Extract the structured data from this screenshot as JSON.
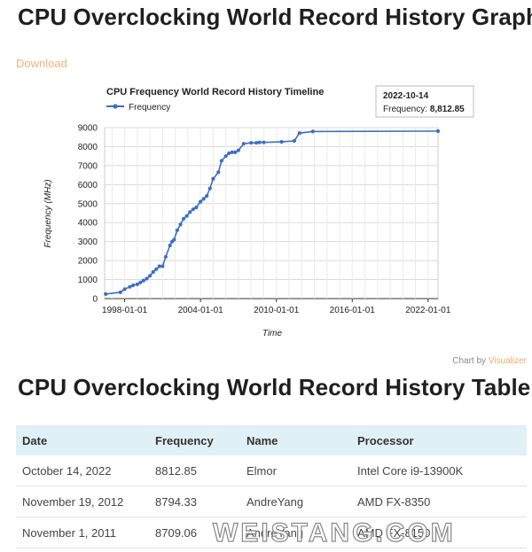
{
  "page": {
    "title": "CPU Overclocking World Record History Graph",
    "download_label": "Download",
    "credit_prefix": "Chart by ",
    "credit_link": "Visualizer",
    "table_title": "CPU Overclocking World Record History Table",
    "watermark": "WEISTANG.COM"
  },
  "chart_data": {
    "type": "line",
    "title": "CPU Frequency World Record History Timeline",
    "xlabel": "Time",
    "ylabel": "Frequency (MHz)",
    "legend": "top-left",
    "grid": true,
    "ylim": [
      0,
      9000
    ],
    "xlim": [
      "1996-06-01",
      "2022-10-14"
    ],
    "yticks": [
      "0",
      "1000",
      "2000",
      "3000",
      "4000",
      "5000",
      "6000",
      "7000",
      "8000",
      "9000"
    ],
    "xticks": [
      "1998-01-01",
      "2004-01-01",
      "2010-01-01",
      "2016-01-01",
      "2022-01-01"
    ],
    "series": [
      {
        "name": "Frequency",
        "color": "#3c6ec4",
        "x": [
          "1996-07-01",
          "1997-09-01",
          "1998-01-01",
          "1998-06-01",
          "1998-09-01",
          "1999-01-01",
          "1999-04-01",
          "1999-07-01",
          "1999-10-01",
          "2000-01-01",
          "2000-04-01",
          "2000-07-01",
          "2000-10-01",
          "2001-01-01",
          "2001-04-01",
          "2001-08-01",
          "2001-10-01",
          "2001-12-01",
          "2002-03-01",
          "2002-06-01",
          "2002-09-01",
          "2002-12-01",
          "2003-03-01",
          "2003-06-01",
          "2003-09-01",
          "2004-01-01",
          "2004-04-01",
          "2004-07-01",
          "2004-10-01",
          "2005-01-01",
          "2005-06-01",
          "2005-09-01",
          "2006-01-01",
          "2006-04-01",
          "2006-07-01",
          "2006-10-01",
          "2007-01-01",
          "2007-06-01",
          "2008-01-01",
          "2008-06-01",
          "2008-09-01",
          "2009-01-01",
          "2010-06-01",
          "2011-06-01",
          "2011-11-01",
          "2012-11-19",
          "2022-10-14"
        ],
        "y": [
          240,
          330,
          500,
          620,
          700,
          750,
          850,
          950,
          1050,
          1200,
          1400,
          1550,
          1700,
          1700,
          2200,
          2800,
          3000,
          3100,
          3600,
          3900,
          4200,
          4350,
          4550,
          4700,
          4800,
          5100,
          5250,
          5400,
          5800,
          6300,
          6650,
          7250,
          7500,
          7650,
          7700,
          7700,
          7800,
          8150,
          8200,
          8200,
          8220,
          8220,
          8250,
          8300,
          8709.06,
          8794.33,
          8812.85
        ]
      }
    ],
    "tooltip": {
      "date": "2022-10-14",
      "label": "Frequency: ",
      "value": "8,812.85"
    }
  },
  "table": {
    "headers": [
      "Date",
      "Frequency",
      "Name",
      "Processor"
    ],
    "rows": [
      [
        "October 14, 2022",
        "8812.85",
        "Elmor",
        "Intel Core i9-13900K"
      ],
      [
        "November 19, 2012",
        "8794.33",
        "AndreYang",
        "AMD FX-8350"
      ],
      [
        "November 1, 2011",
        "8709.06",
        "AndreYang",
        "AMD FX-8150"
      ]
    ]
  }
}
